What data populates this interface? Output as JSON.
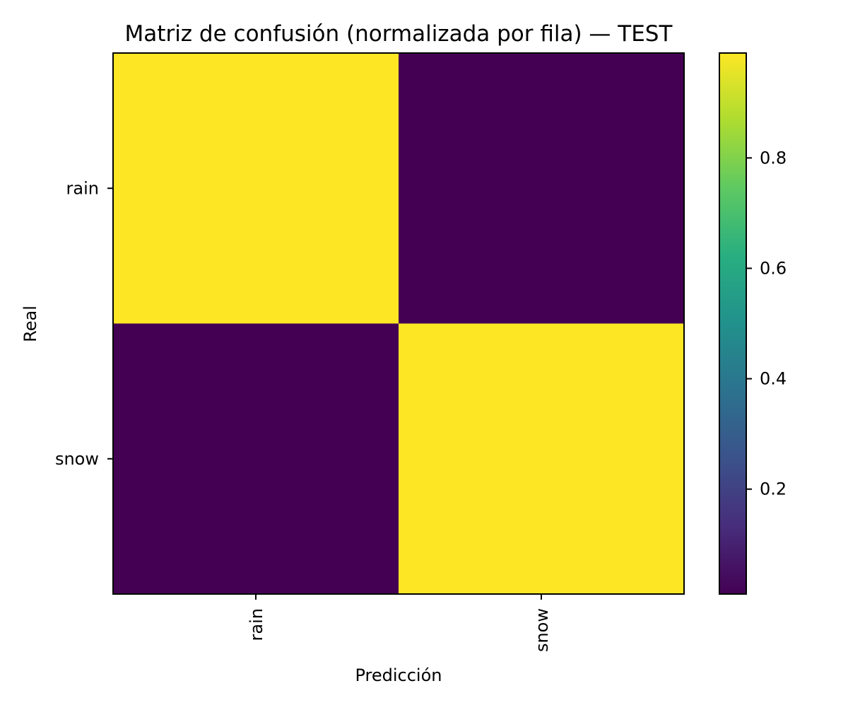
{
  "chart_data": {
    "type": "heatmap",
    "title": "Matriz de confusión (normalizada por fila) — TEST",
    "xlabel": "Predicción",
    "ylabel": "Real",
    "x_categories": [
      "rain",
      "snow"
    ],
    "y_categories": [
      "rain",
      "snow"
    ],
    "values": [
      [
        0.99,
        0.01
      ],
      [
        0.01,
        0.99
      ]
    ],
    "colormap": "viridis",
    "colorbar": {
      "range": [
        0.01,
        0.99
      ],
      "ticks": [
        0.2,
        0.4,
        0.6,
        0.8
      ],
      "tick_labels": [
        "0.2",
        "0.4",
        "0.6",
        "0.8"
      ]
    },
    "grid": false
  }
}
